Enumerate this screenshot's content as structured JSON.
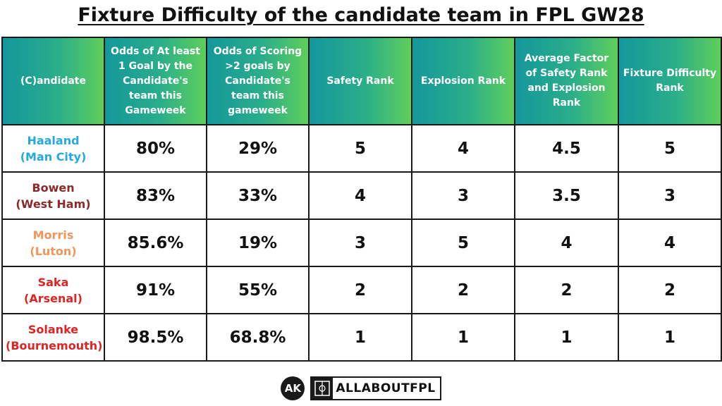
{
  "title": "Fixture Difficulty of the candidate team in FPL GW28",
  "colors": {
    "header_gradient_start": "#14979c",
    "header_gradient_end": "#5fcf5a",
    "highlight_green": "#1faa59"
  },
  "table": {
    "headers": [
      "(C)andidate",
      "Odds of At least 1 Goal by the Candidate's team this Gameweek",
      "Odds of Scoring >2 goals by Candidate's team this gameweek",
      "Safety Rank",
      "Explosion Rank",
      "Average Factor of Safety Rank and Explosion Rank",
      "Fixture Difficulty Rank"
    ],
    "rows": [
      {
        "name": "Haaland",
        "team": "(Man City)",
        "color": "#27a9df",
        "odds1": "80%",
        "odds2": "29%",
        "safety": "5",
        "explosion": "4",
        "avg": "4.5",
        "fdr": "5"
      },
      {
        "name": "Bowen",
        "team": "(West Ham)",
        "color": "#8b2a2a",
        "odds1": "83%",
        "odds2": "33%",
        "safety": "4",
        "explosion": "3",
        "avg": "3.5",
        "fdr": "3"
      },
      {
        "name": "Morris",
        "team": "(Luton)",
        "color": "#f2955a",
        "odds1": "85.6%",
        "odds2": "19%",
        "safety": "3",
        "explosion": "5",
        "avg": "4",
        "fdr": "4"
      },
      {
        "name": "Saka",
        "team": "(Arsenal)",
        "color": "#e02424",
        "odds1": "91%",
        "odds2": "55%",
        "safety": "2",
        "explosion": "2",
        "avg": "2",
        "fdr": "2"
      },
      {
        "name": "Solanke",
        "team": "(Bournemouth)",
        "color": "#e02424",
        "odds1": "98.5%",
        "odds2": "68.8%",
        "safety": "1",
        "explosion": "1",
        "avg": "1",
        "fdr": "1"
      }
    ]
  },
  "footer": {
    "logo_text": "AK",
    "brand_text": "ALLABOUTFPL"
  }
}
